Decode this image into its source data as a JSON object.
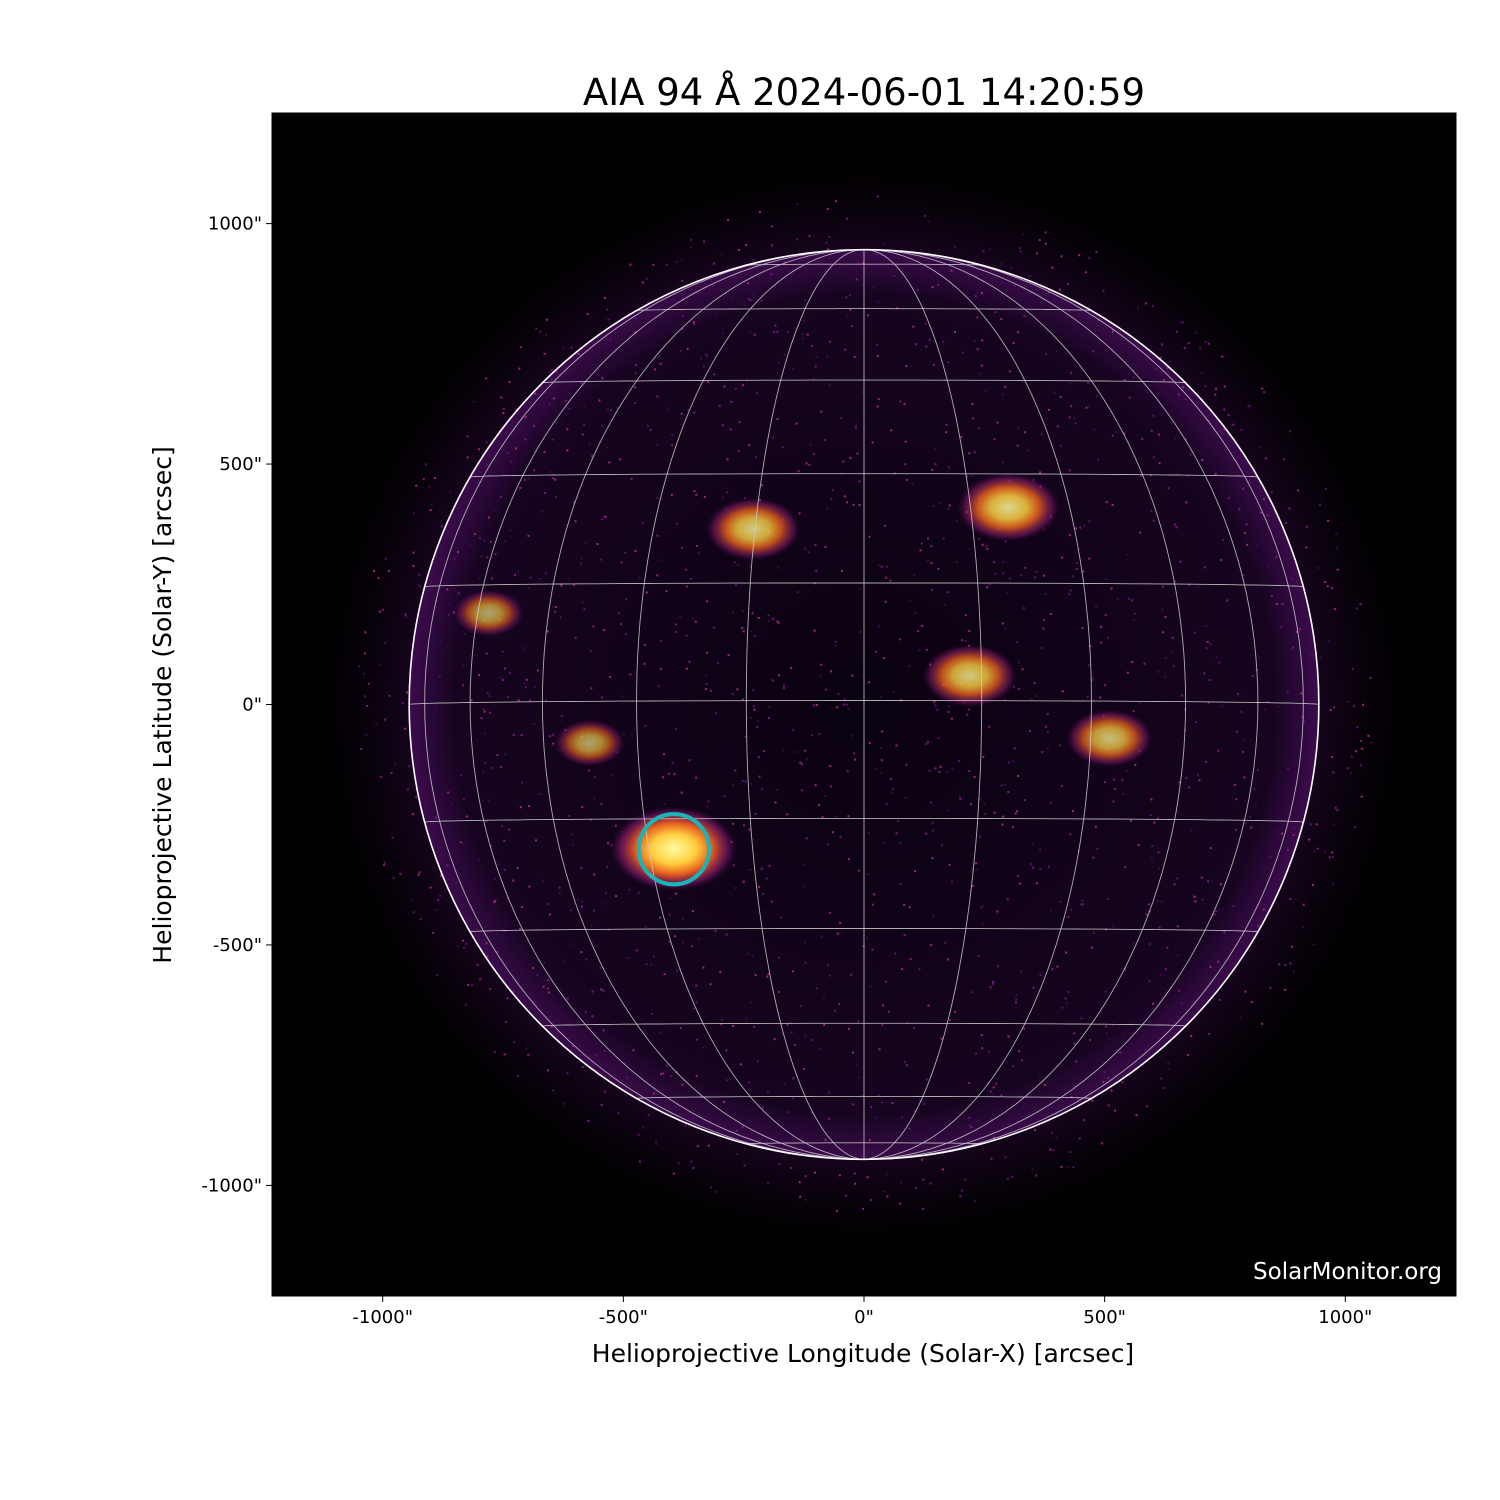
{
  "chart_data": {
    "type": "image",
    "title": "AIA 94 Å 2024-06-01 14:20:59",
    "xlabel": "Helioprojective Longitude (Solar-X) [arcsec]",
    "ylabel": "Helioprojective Latitude (Solar-Y) [arcsec]",
    "xlim": [
      -1230,
      1230
    ],
    "ylim": [
      -1230,
      1230
    ],
    "xticks": [
      {
        "value": -1000,
        "label": "-1000\""
      },
      {
        "value": -500,
        "label": "-500\""
      },
      {
        "value": 0,
        "label": "0\""
      },
      {
        "value": 500,
        "label": "500\""
      },
      {
        "value": 1000,
        "label": "1000\""
      }
    ],
    "yticks": [
      {
        "value": 1000,
        "label": "1000\""
      },
      {
        "value": 500,
        "label": "500\""
      },
      {
        "value": 0,
        "label": "0\""
      },
      {
        "value": -500,
        "label": "-500\""
      },
      {
        "value": -1000,
        "label": "-1000\""
      }
    ],
    "solar_radius_arcsec": 945,
    "grid": {
      "type": "heliographic",
      "spacing_deg": 15,
      "color": "#cccccc"
    },
    "colormap": "sdoaia94",
    "background_color": "#000000",
    "limb_color": "#ffffff",
    "annotation": {
      "type": "circle",
      "center": [
        -395,
        -301
      ],
      "radius_arcsec": 73,
      "color": "#1ab5b8"
    },
    "active_regions": [
      {
        "center": [
          -395,
          -300
        ],
        "brightness": 1.0
      },
      {
        "center": [
          300,
          410
        ],
        "brightness": 0.7
      },
      {
        "center": [
          -230,
          365
        ],
        "brightness": 0.6
      },
      {
        "center": [
          220,
          60
        ],
        "brightness": 0.6
      },
      {
        "center": [
          510,
          -70
        ],
        "brightness": 0.5
      },
      {
        "center": [
          -780,
          190
        ],
        "brightness": 0.3
      },
      {
        "center": [
          -570,
          -80
        ],
        "brightness": 0.3
      }
    ],
    "watermark": "SolarMonitor.org"
  }
}
